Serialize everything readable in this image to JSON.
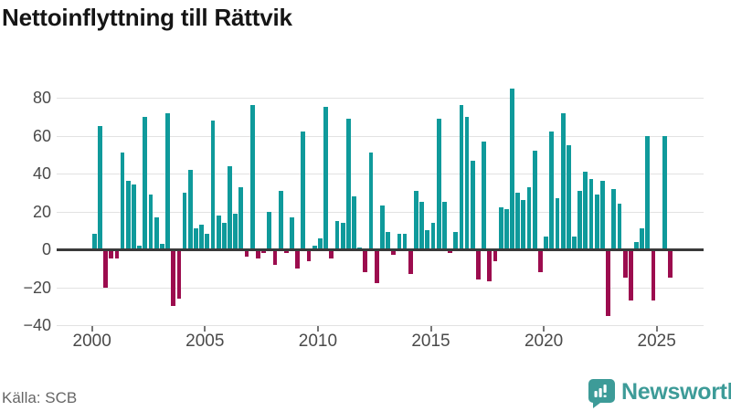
{
  "header": {
    "title": "Nettoinflyttning till Rättvik"
  },
  "footer": {
    "source": "Källa: SCB",
    "logo_text": "Newsworthy"
  },
  "colors": {
    "bar_positive": "#0f9a9b",
    "bar_negative": "#9c0c4e",
    "logo_teal": "#3d9b98",
    "grid": "#e2e2e2",
    "axis": "#3a3a3a",
    "tick_label": "#4a4a4a",
    "title_text": "#151515",
    "source_text": "#666666"
  },
  "chart_data": {
    "type": "bar",
    "title": "Nettoinflyttning till Rättvik",
    "frequency": "quarterly",
    "first_period": "2000Q1",
    "last_period": "2025Q3",
    "x_tick_labels": [
      "2000",
      "2005",
      "2010",
      "2015",
      "2020",
      "2025"
    ],
    "y_ticks": [
      80,
      60,
      40,
      20,
      0,
      -20,
      -40
    ],
    "ylim": [
      -40,
      90
    ],
    "grid": true,
    "legend": "none",
    "series": [
      {
        "name": "Nettoinflyttning",
        "data": [
          {
            "year": 2000,
            "values": [
              8,
              65,
              -20,
              -5
            ]
          },
          {
            "year": 2001,
            "values": [
              -5,
              51,
              36,
              34
            ]
          },
          {
            "year": 2002,
            "values": [
              2,
              70,
              29,
              17
            ]
          },
          {
            "year": 2003,
            "values": [
              3,
              72,
              -30,
              -26
            ]
          },
          {
            "year": 2004,
            "values": [
              30,
              42,
              11,
              13
            ]
          },
          {
            "year": 2005,
            "values": [
              8,
              68,
              18,
              14
            ]
          },
          {
            "year": 2006,
            "values": [
              44,
              19,
              33,
              -4
            ]
          },
          {
            "year": 2007,
            "values": [
              76,
              -5,
              -2,
              20
            ]
          },
          {
            "year": 2008,
            "values": [
              -8,
              31,
              -2,
              17
            ]
          },
          {
            "year": 2009,
            "values": [
              -10,
              62,
              -6,
              2
            ]
          },
          {
            "year": 2010,
            "values": [
              6,
              75,
              -5,
              15
            ]
          },
          {
            "year": 2011,
            "values": [
              14,
              69,
              28,
              1
            ]
          },
          {
            "year": 2012,
            "values": [
              -12,
              51,
              -18,
              23
            ]
          },
          {
            "year": 2013,
            "values": [
              9,
              -3,
              8,
              8
            ]
          },
          {
            "year": 2014,
            "values": [
              -13,
              31,
              25,
              10
            ]
          },
          {
            "year": 2015,
            "values": [
              14,
              69,
              25,
              -2
            ]
          },
          {
            "year": 2016,
            "values": [
              9,
              76,
              70,
              47
            ]
          },
          {
            "year": 2017,
            "values": [
              -16,
              57,
              -17,
              -6
            ]
          },
          {
            "year": 2018,
            "values": [
              22,
              21,
              85,
              30
            ]
          },
          {
            "year": 2019,
            "values": [
              26,
              33,
              52,
              -12
            ]
          },
          {
            "year": 2020,
            "values": [
              7,
              62,
              27,
              72
            ]
          },
          {
            "year": 2021,
            "values": [
              55,
              7,
              31,
              41
            ]
          },
          {
            "year": 2022,
            "values": [
              37,
              29,
              36,
              -35
            ]
          },
          {
            "year": 2023,
            "values": [
              32,
              24,
              -15,
              -27
            ]
          },
          {
            "year": 2024,
            "values": [
              4,
              11,
              60,
              -27
            ]
          },
          {
            "year": 2025,
            "values": [
              0,
              60,
              -15
            ]
          }
        ]
      }
    ]
  }
}
